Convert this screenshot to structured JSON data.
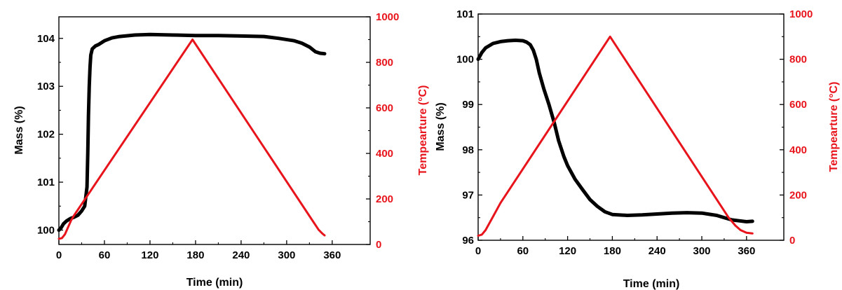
{
  "chart_data": [
    {
      "type": "line",
      "title": "",
      "xlabel": "Time (min)",
      "ylabel": "Mass (%)",
      "y2label": "Tempearture (°C)",
      "xlim": [
        0,
        410
      ],
      "ylim": [
        99.7,
        104.45
      ],
      "y2lim": [
        0,
        1000
      ],
      "xticks": [
        "0",
        "60",
        "120",
        "180",
        "240",
        "300",
        "360"
      ],
      "xtick_values": [
        0,
        60,
        120,
        180,
        240,
        300,
        360
      ],
      "yticks": [
        "100",
        "101",
        "102",
        "103",
        "104"
      ],
      "ytick_values": [
        100,
        101,
        102,
        103,
        104
      ],
      "y2ticks": [
        "0",
        "200",
        "400",
        "600",
        "800",
        "1000"
      ],
      "y2tick_values": [
        0,
        200,
        400,
        600,
        800,
        1000
      ],
      "grid": false,
      "series": [
        {
          "axis": "left",
          "color": "#000000",
          "points": [
            [
              0,
              100.0
            ],
            [
              3,
              100.05
            ],
            [
              6,
              100.13
            ],
            [
              10,
              100.19
            ],
            [
              15,
              100.24
            ],
            [
              20,
              100.27
            ],
            [
              25,
              100.31
            ],
            [
              30,
              100.4
            ],
            [
              34,
              100.5
            ],
            [
              37,
              100.9
            ],
            [
              38,
              101.6
            ],
            [
              39,
              102.4
            ],
            [
              40,
              103.0
            ],
            [
              41,
              103.4
            ],
            [
              42,
              103.65
            ],
            [
              44,
              103.78
            ],
            [
              48,
              103.84
            ],
            [
              52,
              103.87
            ],
            [
              60,
              103.95
            ],
            [
              70,
              104.01
            ],
            [
              80,
              104.04
            ],
            [
              100,
              104.07
            ],
            [
              120,
              104.08
            ],
            [
              150,
              104.07
            ],
            [
              180,
              104.06
            ],
            [
              210,
              104.06
            ],
            [
              240,
              104.05
            ],
            [
              270,
              104.04
            ],
            [
              290,
              104.0
            ],
            [
              310,
              103.95
            ],
            [
              320,
              103.9
            ],
            [
              330,
              103.82
            ],
            [
              338,
              103.72
            ],
            [
              344,
              103.69
            ],
            [
              350,
              103.68
            ]
          ]
        },
        {
          "axis": "right",
          "color": "#e8141c",
          "points": [
            [
              0,
              25
            ],
            [
              4,
              28
            ],
            [
              8,
              45
            ],
            [
              12,
              75
            ],
            [
              16,
              105
            ],
            [
              20,
              128
            ],
            [
              176,
              900
            ],
            [
              335,
              100
            ],
            [
              342,
              65
            ],
            [
              347,
              48
            ],
            [
              350,
              40
            ]
          ]
        }
      ]
    },
    {
      "type": "line",
      "title": "",
      "xlabel": "Time (min)",
      "ylabel": "Mass (%)",
      "y2label": "Tempearture (°C)",
      "xlim": [
        0,
        410
      ],
      "ylim": [
        96.0,
        101.0
      ],
      "y2lim": [
        0,
        1000
      ],
      "xticks": [
        "0",
        "60",
        "120",
        "180",
        "240",
        "300",
        "360"
      ],
      "xtick_values": [
        0,
        60,
        120,
        180,
        240,
        300,
        360
      ],
      "yticks": [
        "96",
        "97",
        "98",
        "99",
        "100",
        "101"
      ],
      "ytick_values": [
        96,
        97,
        98,
        99,
        100,
        101
      ],
      "y2ticks": [
        "0",
        "200",
        "400",
        "600",
        "800",
        "1000"
      ],
      "y2tick_values": [
        0,
        200,
        400,
        600,
        800,
        1000
      ],
      "grid": false,
      "series": [
        {
          "axis": "left",
          "color": "#000000",
          "points": [
            [
              0,
              100.0
            ],
            [
              5,
              100.15
            ],
            [
              10,
              100.25
            ],
            [
              20,
              100.35
            ],
            [
              30,
              100.39
            ],
            [
              40,
              100.41
            ],
            [
              50,
              100.42
            ],
            [
              60,
              100.41
            ],
            [
              65,
              100.38
            ],
            [
              70,
              100.32
            ],
            [
              74,
              100.2
            ],
            [
              78,
              100.0
            ],
            [
              82,
              99.7
            ],
            [
              88,
              99.35
            ],
            [
              95,
              99.0
            ],
            [
              102,
              98.6
            ],
            [
              108,
              98.2
            ],
            [
              115,
              97.85
            ],
            [
              120,
              97.65
            ],
            [
              130,
              97.35
            ],
            [
              140,
              97.12
            ],
            [
              150,
              96.9
            ],
            [
              160,
              96.75
            ],
            [
              170,
              96.63
            ],
            [
              180,
              96.57
            ],
            [
              200,
              96.55
            ],
            [
              220,
              96.56
            ],
            [
              240,
              96.58
            ],
            [
              260,
              96.6
            ],
            [
              280,
              96.61
            ],
            [
              300,
              96.6
            ],
            [
              320,
              96.55
            ],
            [
              340,
              96.45
            ],
            [
              350,
              96.43
            ],
            [
              360,
              96.41
            ],
            [
              368,
              96.42
            ]
          ]
        },
        {
          "axis": "right",
          "color": "#e8141c",
          "points": [
            [
              0,
              20
            ],
            [
              5,
              25
            ],
            [
              10,
              45
            ],
            [
              20,
              105
            ],
            [
              30,
              165
            ],
            [
              177,
              900
            ],
            [
              336,
              100
            ],
            [
              345,
              65
            ],
            [
              352,
              45
            ],
            [
              360,
              33
            ],
            [
              368,
              30
            ]
          ]
        }
      ]
    }
  ]
}
